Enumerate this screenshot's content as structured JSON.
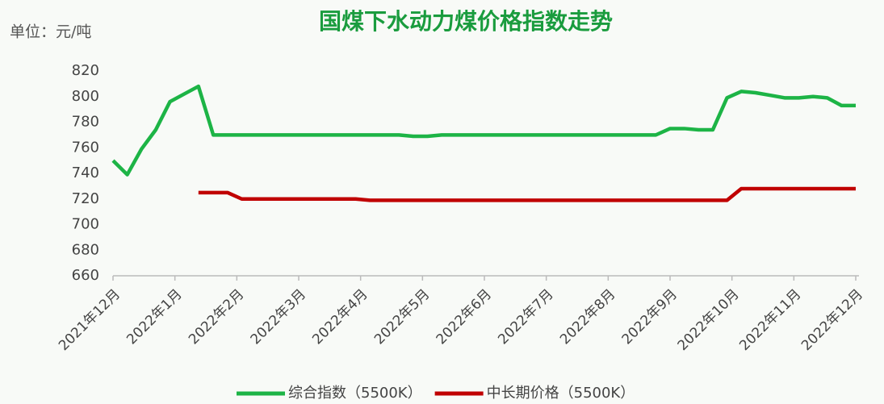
{
  "chart_data": {
    "type": "line",
    "title": "国煤下水动力煤价格指数走势",
    "unit_label": "单位：元/吨",
    "x": [
      0,
      0.23,
      0.46,
      0.69,
      0.92,
      1.15,
      1.38,
      1.62,
      1.85,
      2.08,
      2.31,
      2.54,
      2.77,
      3.0,
      3.23,
      3.46,
      3.69,
      3.92,
      4.15,
      4.38,
      4.62,
      4.85,
      5.08,
      5.31,
      5.54,
      5.77,
      6.0,
      6.23,
      6.46,
      6.69,
      6.92,
      7.15,
      7.38,
      7.62,
      7.85,
      8.08,
      8.31,
      8.54,
      8.77,
      9.0,
      9.23,
      9.46,
      9.69,
      9.92,
      10.15,
      10.38,
      10.62,
      10.85,
      11.08,
      11.31,
      11.54,
      11.77,
      12.0
    ],
    "series": [
      {
        "name": "综合指数（5500K）",
        "color": "#1db446",
        "values": [
          750,
          739,
          759,
          774,
          796,
          802,
          808,
          770,
          770,
          770,
          770,
          770,
          770,
          770,
          770,
          770,
          770,
          770,
          770,
          770,
          770,
          769,
          769,
          770,
          770,
          770,
          770,
          770,
          770,
          770,
          770,
          770,
          770,
          770,
          770,
          770,
          770,
          770,
          770,
          775,
          775,
          774,
          774,
          799,
          804,
          803,
          801,
          799,
          799,
          800,
          799,
          793,
          793
        ]
      },
      {
        "name": "中长期价格（5500K）",
        "color": "#c00000",
        "values": [
          null,
          null,
          null,
          null,
          null,
          null,
          725,
          725,
          725,
          720,
          720,
          720,
          720,
          720,
          720,
          720,
          720,
          720,
          719,
          719,
          719,
          719,
          719,
          719,
          719,
          719,
          719,
          719,
          719,
          719,
          719,
          719,
          719,
          719,
          719,
          719,
          719,
          719,
          719,
          719,
          719,
          719,
          719,
          719,
          728,
          728,
          728,
          728,
          728,
          728,
          728,
          728,
          728
        ]
      }
    ],
    "xlim": [
      0,
      12
    ],
    "xticks": [
      {
        "value": 0,
        "label": "2021年12月"
      },
      {
        "value": 1,
        "label": "2022年1月"
      },
      {
        "value": 2,
        "label": "2022年2月"
      },
      {
        "value": 3,
        "label": "2022年3月"
      },
      {
        "value": 4,
        "label": "2022年4月"
      },
      {
        "value": 5,
        "label": "2022年5月"
      },
      {
        "value": 6,
        "label": "2022年6月"
      },
      {
        "value": 7,
        "label": "2022年7月"
      },
      {
        "value": 8,
        "label": "2022年8月"
      },
      {
        "value": 9,
        "label": "2022年9月"
      },
      {
        "value": 10,
        "label": "2022年10月"
      },
      {
        "value": 11,
        "label": "2022年11月"
      },
      {
        "value": 12,
        "label": "2022年12月"
      }
    ],
    "ylim": [
      660,
      820
    ],
    "yticks": [
      660,
      680,
      700,
      720,
      740,
      760,
      780,
      800,
      820
    ],
    "grid": false,
    "legend": "bottom"
  }
}
